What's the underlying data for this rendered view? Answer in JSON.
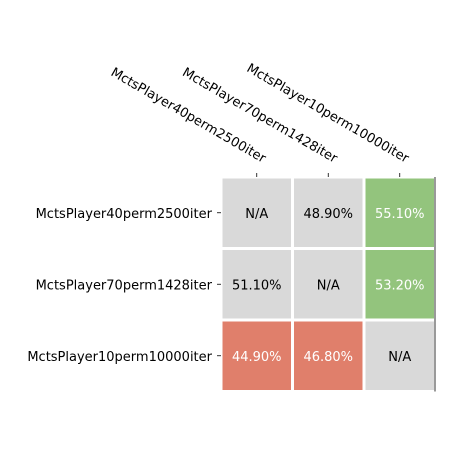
{
  "chart_data": {
    "type": "heatmap",
    "title": "",
    "xlabel": "",
    "ylabel": "",
    "rows": [
      "MctsPlayer40perm2500iter",
      "MctsPlayer70perm1428iter",
      "MctsPlayer10perm10000iter"
    ],
    "columns": [
      "MctsPlayer40perm2500iter",
      "MctsPlayer70perm1428iter",
      "MctsPlayer10perm10000iter"
    ],
    "values": [
      [
        null,
        48.9,
        55.1
      ],
      [
        51.1,
        null,
        53.2
      ],
      [
        44.9,
        46.8,
        null
      ]
    ],
    "cell_labels": [
      [
        "N/A",
        "48.90%",
        "55.10%"
      ],
      [
        "51.10%",
        "N/A",
        "53.20%"
      ],
      [
        "44.90%",
        "46.80%",
        "N/A"
      ]
    ],
    "x_tick_position": "top",
    "x_tick_rotation": "diagonal",
    "grid": false,
    "legend": "none"
  },
  "colors": {
    "na_cell": "#d9d9d9",
    "win": "#93c47d",
    "loss": "#e07f6b",
    "near_even": "#d9d9d9",
    "cell_border": "#ffffff",
    "text_dark": "#000000",
    "text_light": "#ffffff"
  }
}
